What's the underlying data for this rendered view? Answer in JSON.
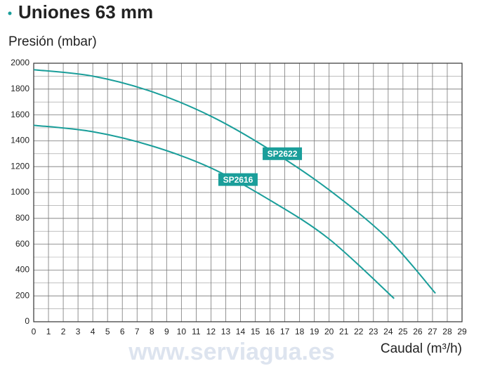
{
  "chart_data": {
    "type": "line",
    "title": "Uniones 63 mm",
    "y_label": "Presión (mbar)",
    "x_label": "Caudal (m³/h)",
    "xlim": [
      0,
      29
    ],
    "xticks": [
      0,
      1,
      2,
      3,
      4,
      5,
      6,
      7,
      8,
      9,
      10,
      11,
      12,
      13,
      14,
      15,
      16,
      17,
      18,
      19,
      20,
      21,
      22,
      23,
      24,
      25,
      26,
      27,
      28,
      29
    ],
    "ylim": [
      0,
      2000
    ],
    "yticks": [
      0,
      200,
      400,
      600,
      800,
      1000,
      1200,
      1400,
      1600,
      1800,
      2000
    ],
    "minor_yticks": [
      100,
      300,
      500,
      700,
      900,
      1100,
      1300,
      1500,
      1700,
      1900
    ],
    "grid": true,
    "series": [
      {
        "name": "SP2622",
        "color": "#1a9e9a",
        "x": [
          0,
          4,
          8,
          12,
          16,
          20,
          24,
          27.2
        ],
        "values": [
          1950,
          1900,
          1780,
          1590,
          1330,
          1020,
          640,
          220
        ]
      },
      {
        "name": "SP2616",
        "color": "#1a9e9a",
        "x": [
          0,
          4,
          8,
          12,
          16,
          20,
          24.4
        ],
        "values": [
          1520,
          1470,
          1360,
          1190,
          940,
          640,
          180
        ]
      }
    ],
    "watermark": "www.serviagua.es"
  }
}
